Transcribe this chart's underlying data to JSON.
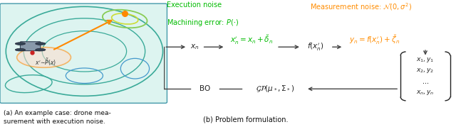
{
  "fig_width": 6.4,
  "fig_height": 1.79,
  "dpi": 100,
  "caption_a": "(a) An example case: drone mea-\nsurement with execution noise.",
  "caption_b": "(b) Problem formulation.",
  "exec_noise_color": "#00bb00",
  "meas_noise_color": "#ff8c00",
  "arrow_color": "#444444",
  "text_color": "#222222"
}
